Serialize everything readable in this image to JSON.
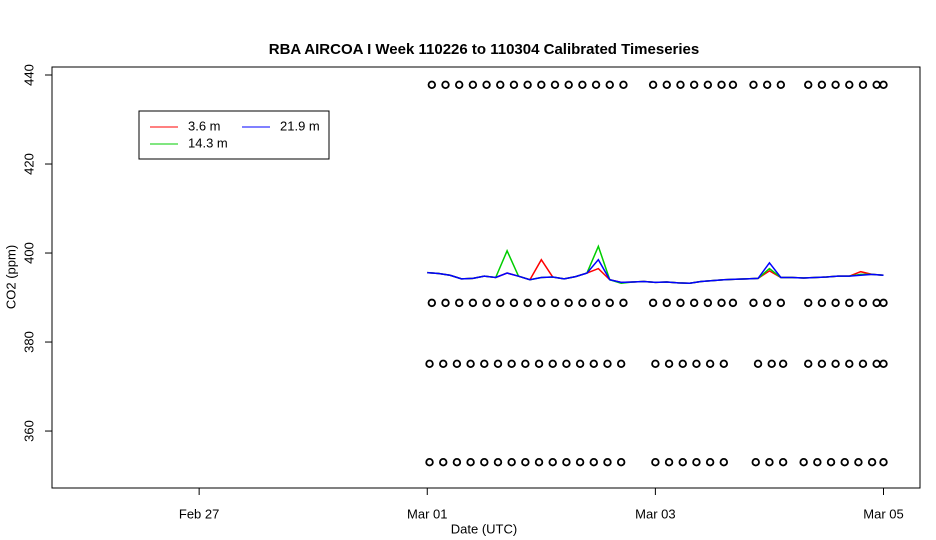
{
  "chart_data": {
    "type": "line",
    "title": "RBA AIRCOA I  Week 110226 to 110304  Calibrated Timeseries",
    "x_label": "Date (UTC)",
    "y_label": "CO2 (ppm)",
    "xlim": [
      56.71,
      64.32
    ],
    "ylim": [
      347.2,
      441.8
    ],
    "xticks": [
      {
        "value": 58,
        "label": "Feb 27"
      },
      {
        "value": 60,
        "label": "Mar 01"
      },
      {
        "value": 62,
        "label": "Mar 03"
      },
      {
        "value": 64,
        "label": "Mar 05"
      }
    ],
    "yticks": [
      360,
      380,
      400,
      420,
      440
    ],
    "x": [
      60.0,
      60.1,
      60.2,
      60.3,
      60.4,
      60.5,
      60.6,
      60.7,
      60.8,
      60.9,
      61.0,
      61.1,
      61.2,
      61.3,
      61.4,
      61.5,
      61.6,
      61.7,
      61.8,
      61.9,
      62.0,
      62.1,
      62.2,
      62.3,
      62.4,
      62.5,
      62.6,
      62.7,
      62.8,
      62.9,
      63.0,
      63.1,
      63.2,
      63.3,
      63.4,
      63.5,
      63.6,
      63.7,
      63.8,
      63.9,
      64.0
    ],
    "series": [
      {
        "name": "3.6 m",
        "color": "#ff0000",
        "values": [
          395.6,
          395.4,
          395.0,
          394.2,
          394.3,
          394.8,
          394.5,
          395.5,
          394.8,
          394.0,
          398.5,
          394.6,
          394.2,
          394.7,
          395.5,
          396.5,
          394.0,
          393.4,
          393.5,
          393.6,
          393.4,
          393.5,
          393.3,
          393.2,
          393.6,
          393.8,
          394.0,
          394.1,
          394.2,
          394.3,
          396.0,
          394.5,
          394.5,
          394.4,
          394.5,
          394.6,
          394.8,
          394.8,
          395.8,
          395.2,
          395.0
        ]
      },
      {
        "name": "14.3 m",
        "color": "#00cd00",
        "values": [
          395.6,
          395.4,
          395.0,
          394.2,
          394.3,
          394.8,
          394.5,
          400.5,
          394.8,
          394.0,
          394.5,
          394.6,
          394.2,
          394.7,
          395.5,
          401.5,
          394.0,
          393.2,
          393.5,
          393.6,
          393.4,
          393.5,
          393.3,
          393.2,
          393.6,
          393.8,
          394.0,
          394.1,
          394.2,
          394.3,
          396.5,
          394.5,
          394.5,
          394.4,
          394.5,
          394.6,
          394.8,
          394.8,
          395.2,
          395.2,
          395.0
        ]
      },
      {
        "name": "21.9 m",
        "color": "#0000ff",
        "values": [
          395.6,
          395.4,
          395.0,
          394.2,
          394.3,
          394.8,
          394.5,
          395.5,
          394.8,
          394.0,
          394.5,
          394.6,
          394.2,
          394.7,
          395.5,
          398.5,
          394.0,
          393.4,
          393.5,
          393.6,
          393.4,
          393.5,
          393.3,
          393.2,
          393.6,
          393.8,
          394.0,
          394.1,
          394.2,
          394.3,
          397.8,
          394.5,
          394.5,
          394.4,
          394.5,
          394.6,
          394.8,
          394.8,
          395.0,
          395.2,
          395.0
        ]
      }
    ],
    "flag_rows": [
      {
        "y": 437.8,
        "x": [
          60.04,
          60.16,
          60.28,
          60.4,
          60.52,
          60.64,
          60.76,
          60.88,
          61.0,
          61.12,
          61.24,
          61.36,
          61.48,
          61.6,
          61.72,
          61.98,
          62.1,
          62.22,
          62.34,
          62.46,
          62.58,
          62.68,
          62.86,
          62.98,
          63.1,
          63.34,
          63.46,
          63.58,
          63.7,
          63.82,
          63.94,
          64.0
        ]
      },
      {
        "y": 388.8,
        "x": [
          60.04,
          60.16,
          60.28,
          60.4,
          60.52,
          60.64,
          60.76,
          60.88,
          61.0,
          61.12,
          61.24,
          61.36,
          61.48,
          61.6,
          61.72,
          61.98,
          62.1,
          62.22,
          62.34,
          62.46,
          62.58,
          62.68,
          62.86,
          62.98,
          63.1,
          63.34,
          63.46,
          63.58,
          63.7,
          63.82,
          63.94,
          64.0
        ]
      },
      {
        "y": 375.1,
        "x": [
          60.02,
          60.14,
          60.26,
          60.38,
          60.5,
          60.62,
          60.74,
          60.86,
          60.98,
          61.1,
          61.22,
          61.34,
          61.46,
          61.58,
          61.7,
          62.0,
          62.12,
          62.24,
          62.36,
          62.48,
          62.6,
          62.9,
          63.02,
          63.12,
          63.34,
          63.46,
          63.58,
          63.7,
          63.82,
          63.94,
          64.0
        ]
      },
      {
        "y": 353.0,
        "x": [
          60.02,
          60.14,
          60.26,
          60.38,
          60.5,
          60.62,
          60.74,
          60.86,
          60.98,
          61.1,
          61.22,
          61.34,
          61.46,
          61.58,
          61.7,
          62.0,
          62.12,
          62.24,
          62.36,
          62.48,
          62.6,
          62.88,
          63.0,
          63.12,
          63.3,
          63.42,
          63.54,
          63.66,
          63.78,
          63.9,
          64.0
        ]
      }
    ]
  }
}
